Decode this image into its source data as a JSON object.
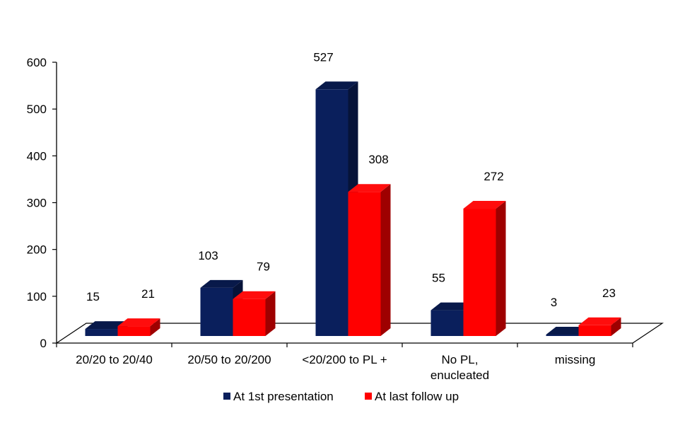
{
  "chart_data": {
    "type": "bar",
    "style": "3d-clustered-column",
    "categories": [
      [
        "20/20 to 20/40"
      ],
      [
        "20/50 to 20/200"
      ],
      [
        "<20/200 to PL +"
      ],
      [
        "No PL,",
        "enucleated"
      ],
      [
        "missing"
      ]
    ],
    "series": [
      {
        "name": "At 1st presentation",
        "color": "#0a1f5c",
        "values": [
          15,
          103,
          527,
          55,
          3
        ]
      },
      {
        "name": "At last follow up",
        "color": "#ff0000",
        "values": [
          21,
          79,
          308,
          272,
          23
        ]
      }
    ],
    "y_ticks": [
      "0",
      "100",
      "200",
      "300",
      "400",
      "500",
      "600"
    ],
    "ylim": [
      0,
      600
    ],
    "grid": false,
    "legend_position": "bottom",
    "title": "",
    "xlabel": "",
    "ylabel": ""
  }
}
